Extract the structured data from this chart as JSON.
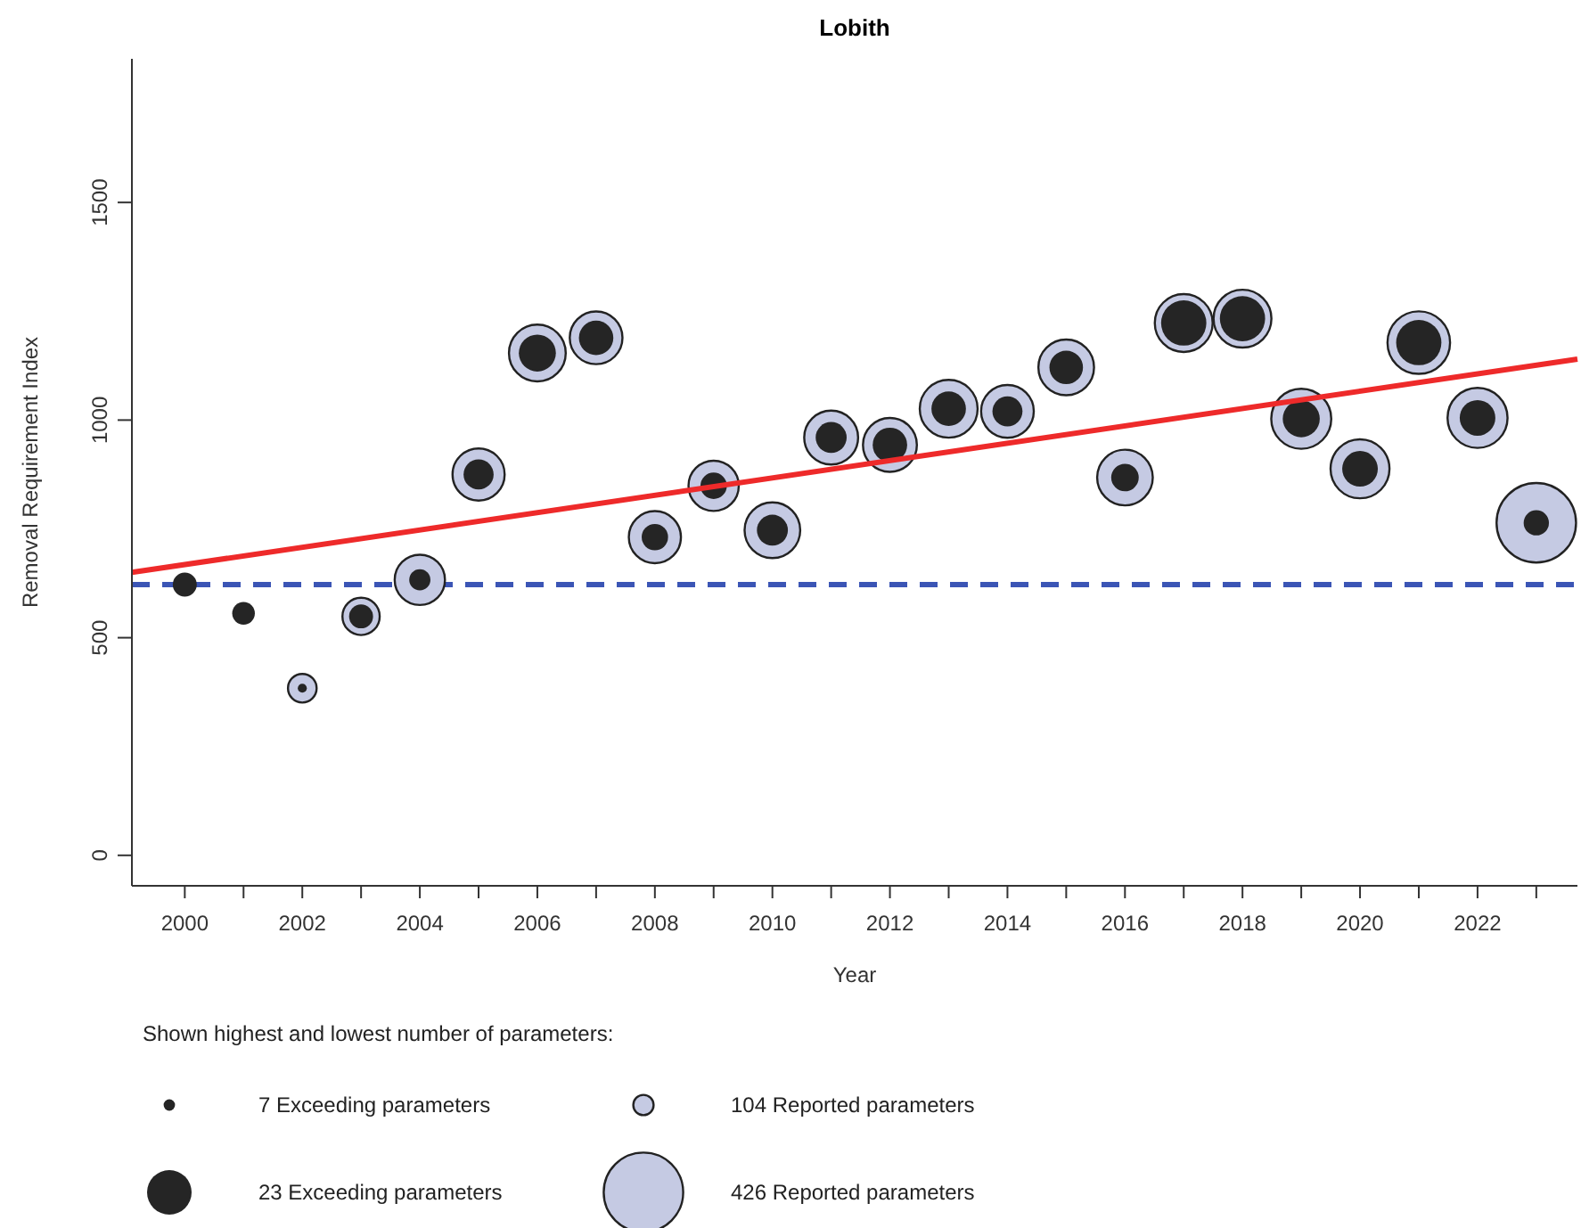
{
  "chart_data": {
    "type": "bubble",
    "title": "Lobith",
    "xlabel": "Year",
    "ylabel": "Removal Requirement Index",
    "annotations": [
      "Shown highest and lowest number of parameters:",
      "7 Exceeding parameters",
      "104 Reported parameters",
      "23 Exceeding parameters",
      "426 Reported parameters"
    ],
    "x": [
      2000,
      2001,
      2002,
      2003,
      2004,
      2005,
      2006,
      2007,
      2008,
      2009,
      2010,
      2011,
      2012,
      2013,
      2014,
      2015,
      2016,
      2017,
      2018,
      2019,
      2020,
      2021,
      2022,
      2023
    ],
    "xlim": [
      1999.1,
      2023.7
    ],
    "xticks": [
      2000,
      {
        "value": 2001,
        "label": null
      },
      2002,
      {
        "value": 2003,
        "label": null
      },
      2004,
      {
        "value": 2005,
        "label": null
      },
      2006,
      {
        "value": 2007,
        "label": null
      },
      2008,
      {
        "value": 2009,
        "label": null
      },
      2010,
      {
        "value": 2011,
        "label": null
      },
      2012,
      {
        "value": 2013,
        "label": null
      },
      2014,
      {
        "value": 2015,
        "label": null
      },
      2016,
      {
        "value": 2017,
        "label": null
      },
      2018,
      {
        "value": 2019,
        "label": null
      },
      2020,
      {
        "value": 2021,
        "label": null
      },
      2022,
      {
        "value": 2023,
        "label": null
      }
    ],
    "ylim": [
      -70,
      1830
    ],
    "yticks": [
      0,
      500,
      1000,
      1500
    ],
    "series": [
      {
        "color": "#c5cae3",
        "values": [
          null,
          null,
          384,
          549,
          633,
          875,
          1154,
          1189,
          731,
          849,
          747,
          960,
          943,
          1026,
          1020,
          1121,
          868,
          1223,
          1233,
          1003,
          888,
          1178,
          1005,
          764
        ],
        "sizes": [
          null,
          null,
          0.13,
          0.22,
          0.4,
          0.43,
          0.51,
          0.44,
          0.43,
          0.4,
          0.49,
          0.46,
          0.46,
          0.53,
          0.44,
          0.49,
          0.49,
          0.53,
          0.53,
          0.57,
          0.55,
          0.62,
          0.57,
          1
        ]
      },
      {
        "color": "#252525",
        "values": [
          622,
          556,
          384,
          549,
          633,
          875,
          1154,
          1189,
          731,
          849,
          747,
          960,
          943,
          1026,
          1020,
          1121,
          868,
          1223,
          1233,
          1003,
          888,
          1178,
          1005,
          764
        ],
        "sizes": [
          0.091,
          0.081,
          0.013,
          0.091,
          0.071,
          0.143,
          0.217,
          0.188,
          0.11,
          0.11,
          0.152,
          0.152,
          0.188,
          0.188,
          0.143,
          0.178,
          0.12,
          0.324,
          0.324,
          0.217,
          0.201,
          0.324,
          0.201,
          0.101
        ]
      },
      {
        "type": "line",
        "color": "#ee2a2a",
        "x": [
          1999.1,
          2023.7
        ],
        "values": [
          650,
          1140
        ]
      }
    ],
    "ref_lines": [
      {
        "axis": "y",
        "value": 622,
        "color": "#3b55b5",
        "line_style": "dashed"
      }
    ]
  }
}
